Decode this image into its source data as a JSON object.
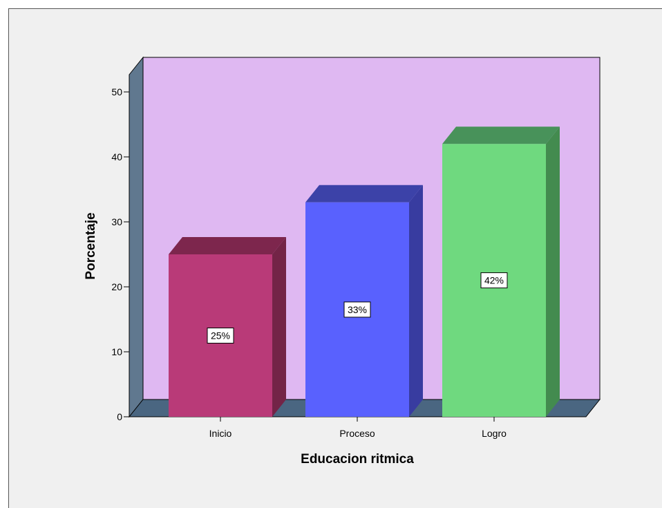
{
  "chart_data": {
    "type": "bar",
    "categories": [
      "Inicio",
      "Proceso",
      "Logro"
    ],
    "values": [
      25,
      33,
      42
    ],
    "data_labels": [
      "25%",
      "33%",
      "42%"
    ],
    "xlabel": "Educacion ritmica",
    "ylabel": "Porcentaje",
    "ylim": [
      0,
      50
    ],
    "yticks": [
      0,
      10,
      20,
      30,
      40,
      50
    ],
    "three_d": true,
    "colors": {
      "plot_back": "#dfb8f2",
      "floor": "#4a6681",
      "left_wall": "#60788f",
      "bars": [
        {
          "front": "#b93a78",
          "side": "#732447",
          "top": "#7d264d"
        },
        {
          "front": "#5961fe",
          "side": "#383ca0",
          "top": "#3c42a8"
        },
        {
          "front": "#6fd97f",
          "side": "#438b4f",
          "top": "#48925a"
        }
      ]
    }
  }
}
